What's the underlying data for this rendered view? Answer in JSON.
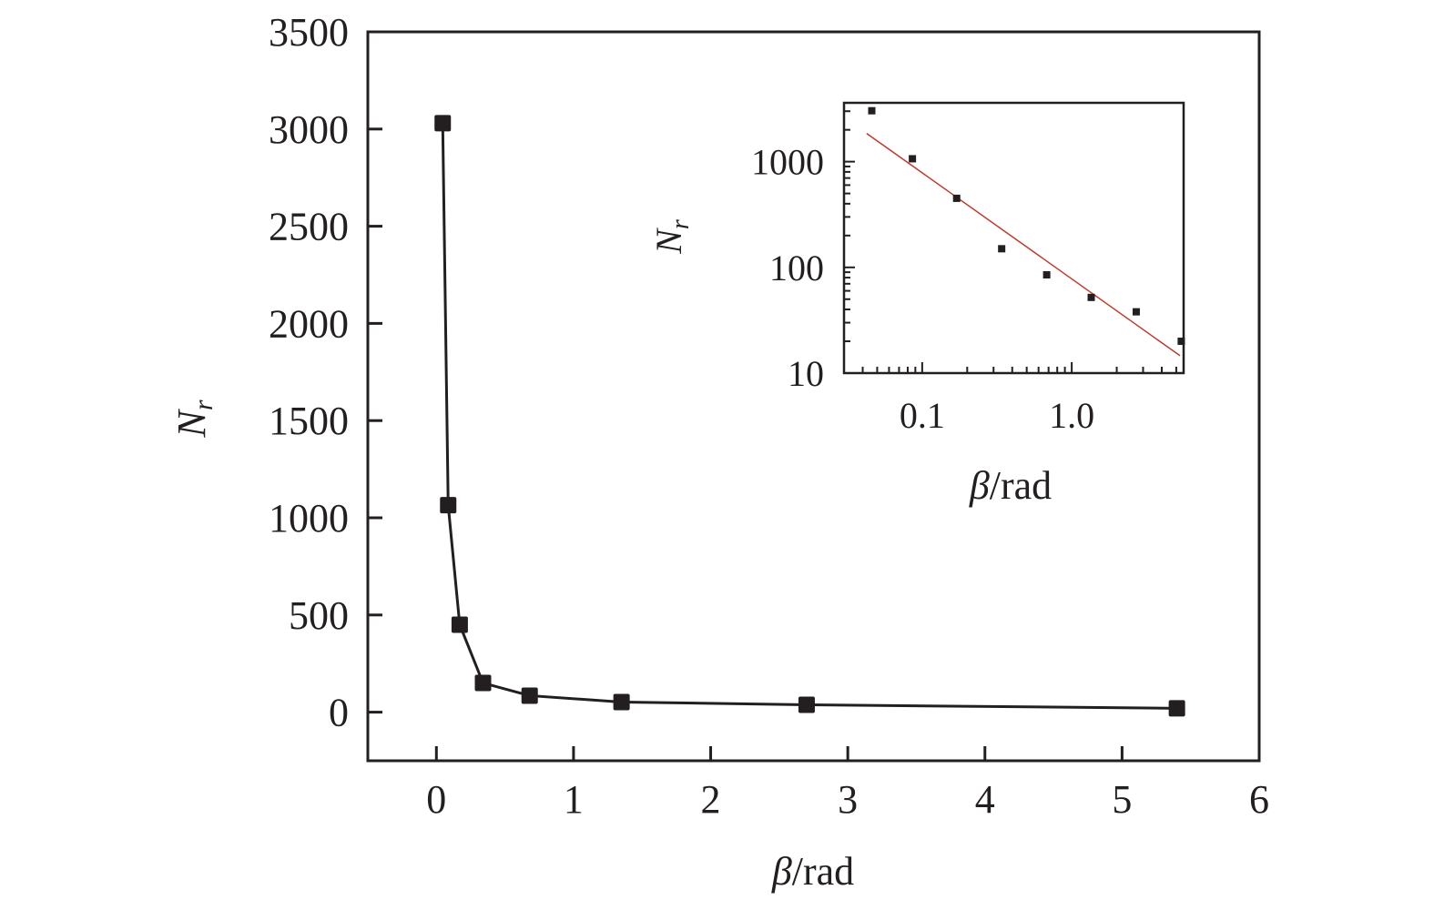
{
  "chart_data": [
    {
      "type": "line",
      "title": "",
      "xlabel": "β/rad",
      "ylabel": "N_r",
      "xlim": [
        -0.5,
        6
      ],
      "ylim": [
        -250,
        3500
      ],
      "x_ticks": [
        "0",
        "1",
        "2",
        "3",
        "4",
        "5",
        "6"
      ],
      "y_ticks": [
        "0",
        "500",
        "1000",
        "1500",
        "2000",
        "2500",
        "3000",
        "3500"
      ],
      "grid": false,
      "marker": "square",
      "series": [
        {
          "name": "N_r",
          "x": [
            0.046,
            0.086,
            0.17,
            0.34,
            0.68,
            1.35,
            2.7,
            5.4
          ],
          "y": [
            3030,
            1065,
            450,
            150,
            85,
            52,
            38,
            20
          ]
        }
      ]
    },
    {
      "type": "scatter",
      "title": "",
      "inset": true,
      "xlabel": "β/rad",
      "ylabel": "N_r",
      "xscale": "log",
      "yscale": "log",
      "xlim": [
        0.03,
        5.6
      ],
      "ylim": [
        10,
        3600
      ],
      "x_ticks": [
        "0.1",
        "1.0"
      ],
      "y_ticks": [
        "10",
        "100",
        "1000"
      ],
      "series": [
        {
          "name": "data",
          "x": [
            0.046,
            0.086,
            0.17,
            0.34,
            0.68,
            1.35,
            2.7,
            5.4
          ],
          "y": [
            3030,
            1065,
            450,
            150,
            85,
            52,
            38,
            20
          ]
        },
        {
          "name": "power-law fit",
          "type": "line",
          "color": "#c0392b",
          "x": [
            0.0425,
            5.3
          ],
          "y": [
            1850,
            14.6
          ]
        }
      ]
    }
  ],
  "labels": {
    "main_ylabel": "N",
    "main_ylabel_sub": "r",
    "main_xlabel_sym": "β",
    "main_xlabel_unit": "/rad",
    "inset_ylabel": "N",
    "inset_ylabel_sub": "r",
    "inset_xlabel_sym": "β",
    "inset_xlabel_unit": "/rad"
  },
  "colors": {
    "axis": "#231f20",
    "fit": "#c0392b",
    "marker": "#231f20"
  }
}
